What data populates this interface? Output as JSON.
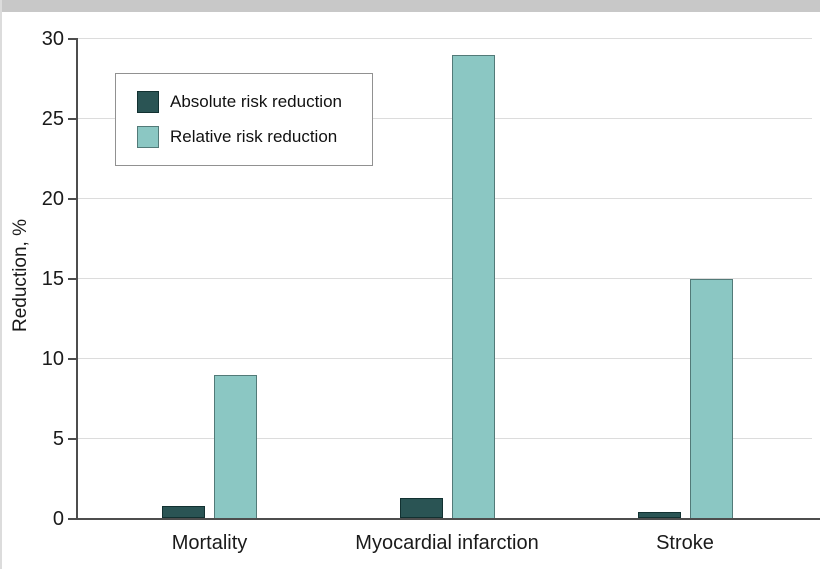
{
  "colors": {
    "top_bar": "#c8c8c8",
    "axis": "#4d4d4d",
    "gridline": "#dcdcdc",
    "text": "#1a1a1a",
    "legend_border": "#919191",
    "legend_background": "#ffffff"
  },
  "chart_data": {
    "type": "bar",
    "title": "",
    "categories": [
      "Mortality",
      "Myocardial infarction",
      "Stroke"
    ],
    "series": [
      {
        "name": "Absolute risk reduction",
        "values": [
          0.8,
          1.3,
          0.4
        ],
        "fill": "#2a5454",
        "border": "#123131"
      },
      {
        "name": "Relative risk reduction",
        "values": [
          9,
          29,
          15
        ],
        "fill": "#8bc7c3",
        "border": "#527a78"
      }
    ],
    "xlabel": "",
    "ylabel": "Reduction, %",
    "ylim": [
      0,
      30
    ],
    "yticks": [
      0,
      5,
      10,
      15,
      20,
      25,
      30
    ],
    "grid": true,
    "legend_position": "upper-left inside plot"
  }
}
